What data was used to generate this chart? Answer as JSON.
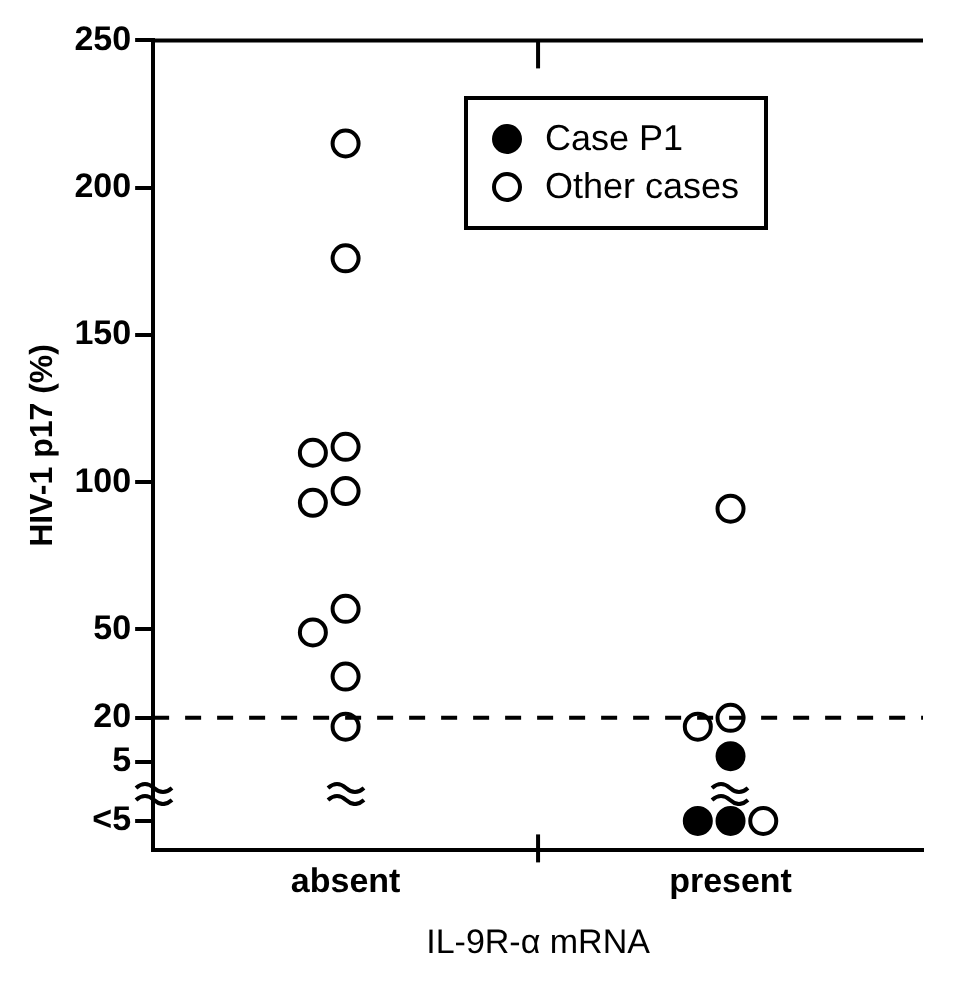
{
  "chart_data": {
    "type": "scatter",
    "xlabel": "IL-9R-α mRNA",
    "ylabel": "HIV-1 p17 (%)",
    "categories": [
      "absent",
      "present"
    ],
    "ylim": [
      -25,
      250
    ],
    "yticks": [
      250,
      200,
      150,
      100,
      50,
      20,
      5,
      {
        "value": -15,
        "label": "<5"
      }
    ],
    "marker": "circle",
    "grid": false,
    "legend": "top right",
    "ref_lines": [
      {
        "axis": "y",
        "value": 20,
        "line_style": "dashed",
        "color": "#000000"
      }
    ],
    "series": [
      {
        "name": "Case P1",
        "color": "#000000",
        "x": [
          "present",
          "present",
          "present"
        ],
        "values": [
          7,
          -15,
          -15
        ]
      },
      {
        "name": "Other cases",
        "color": "#ffffff",
        "x": [
          "absent",
          "absent",
          "absent",
          "absent",
          "absent",
          "absent",
          "absent",
          "absent",
          "absent",
          "absent",
          "present",
          "present",
          "present",
          "present"
        ],
        "values": [
          215,
          176,
          112,
          110,
          97,
          93,
          57,
          49,
          34,
          17,
          91,
          20,
          17,
          -15
        ]
      }
    ]
  }
}
